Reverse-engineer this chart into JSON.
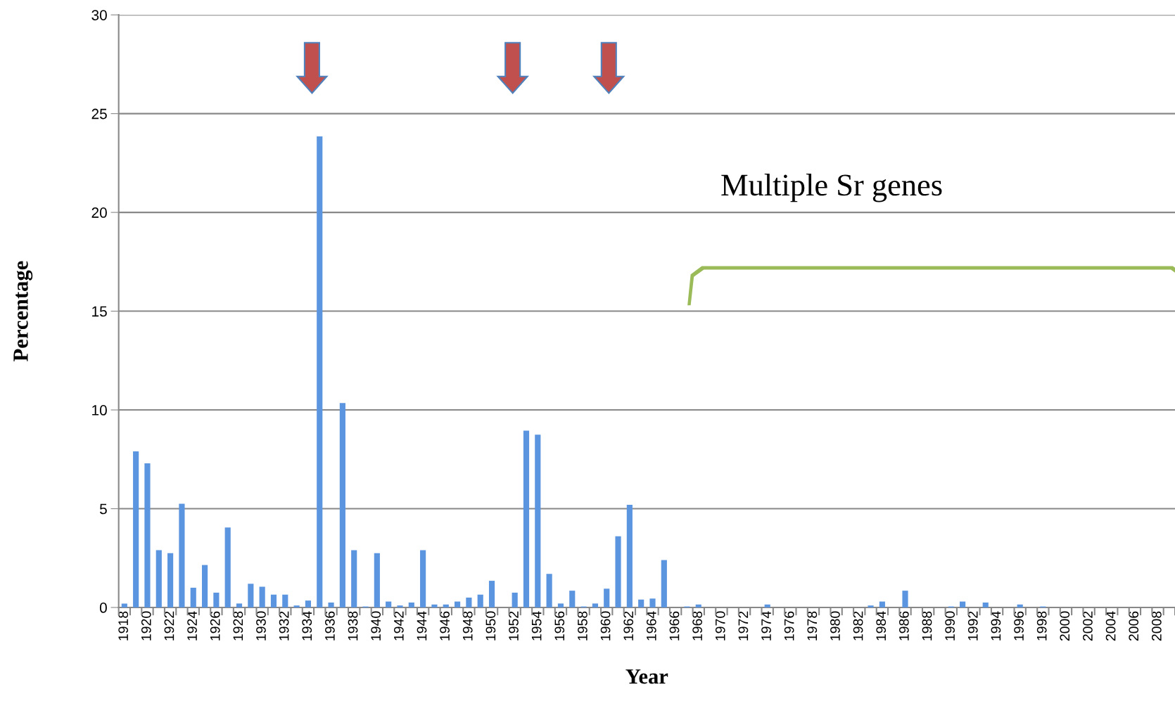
{
  "chart_data": {
    "type": "bar",
    "xlabel": "Year",
    "ylabel": "Percentage",
    "categories": [
      "1918",
      null,
      "1920",
      null,
      "1922",
      null,
      "1924",
      null,
      "1926",
      null,
      "1928",
      null,
      "1930",
      null,
      "1932",
      null,
      "1934",
      null,
      "1936",
      null,
      "1938",
      null,
      "1940",
      null,
      "1942",
      null,
      "1944",
      null,
      "1946",
      null,
      "1948",
      null,
      "1950",
      null,
      "1952",
      null,
      "1954",
      null,
      "1956",
      null,
      "1958",
      null,
      "1960",
      null,
      "1962",
      null,
      "1964",
      null,
      "1966",
      null,
      "1968",
      null,
      "1970",
      null,
      "1972",
      null,
      "1974",
      null,
      "1976",
      null,
      "1978",
      null,
      "1980",
      null,
      "1982",
      null,
      "1984",
      null,
      "1986",
      null,
      "1988",
      null,
      "1990",
      null,
      "1992",
      null,
      "1994",
      null,
      "1996",
      null,
      "1998",
      null,
      "2000",
      null,
      "2002",
      null,
      "2004",
      null,
      "2006",
      null,
      "2008",
      null
    ],
    "values": [
      0.2,
      7.9,
      7.3,
      2.9,
      2.75,
      5.25,
      1.0,
      2.15,
      0.75,
      4.05,
      0.2,
      1.2,
      1.05,
      0.65,
      0.65,
      0.1,
      0.35,
      23.85,
      0.25,
      10.35,
      2.9,
      0.05,
      2.75,
      0.3,
      0.1,
      0.25,
      2.9,
      0.15,
      0.15,
      0.3,
      0.5,
      0.65,
      1.35,
      0,
      0.75,
      8.95,
      8.75,
      1.7,
      0.2,
      0.85,
      0.05,
      0.2,
      0.95,
      3.6,
      5.2,
      0.4,
      0.45,
      2.4,
      0,
      0.05,
      0.15,
      0,
      0,
      0,
      0,
      0,
      0.15,
      0,
      0,
      0,
      0,
      0,
      0,
      0,
      0,
      0.1,
      0.3,
      0,
      0.85,
      0,
      0,
      0,
      0.05,
      0.3,
      0,
      0.25,
      0,
      0,
      0.15,
      0,
      0.05,
      0,
      0,
      0,
      0,
      0,
      0,
      0,
      0,
      0,
      0,
      0
    ],
    "color": "#5b95e0",
    "ylim": [
      0,
      30
    ],
    "yticks": [
      0,
      5,
      10,
      15,
      20,
      25,
      30
    ],
    "grid": "y",
    "annotations": [
      "Multiple Sr genes"
    ]
  }
}
